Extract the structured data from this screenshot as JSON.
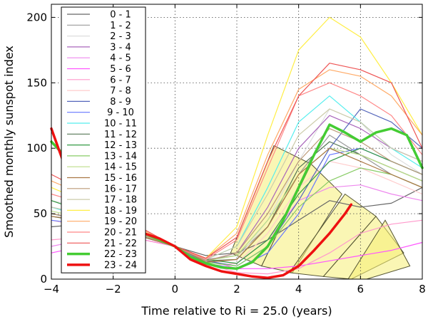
{
  "chart_data": {
    "type": "line",
    "title": "",
    "xlabel": "Time relative to Ri = 25.0 (years)",
    "ylabel": "Smoothed monthly sunspot index",
    "xlim": [
      -4,
      8
    ],
    "ylim": [
      0,
      210
    ],
    "x_ticks": [
      -4,
      -2,
      0,
      2,
      4,
      6,
      8
    ],
    "y_ticks": [
      0,
      50,
      100,
      150,
      200
    ],
    "x_tick_labels": [
      "−4",
      "−2",
      "0",
      "2",
      "4",
      "6",
      "8"
    ],
    "y_tick_labels": [
      "0",
      "50",
      "100",
      "150",
      "200"
    ],
    "grid": true,
    "legend_position": "top-left",
    "series": [
      {
        "name": "0 - 1",
        "color": "#666666",
        "width": 1.2,
        "x": [
          -4,
          -3,
          -2,
          -1,
          0,
          1,
          2,
          3,
          4,
          5,
          6,
          7,
          8
        ],
        "y": [
          40,
          42,
          38,
          32,
          25,
          18,
          20,
          30,
          45,
          60,
          55,
          58,
          70
        ]
      },
      {
        "name": "1 - 2",
        "color": "#999999",
        "width": 1.2,
        "x": [
          -4,
          -3,
          -2,
          -1,
          0,
          1,
          2,
          3,
          4,
          5,
          6,
          7,
          8
        ],
        "y": [
          50,
          45,
          40,
          35,
          25,
          15,
          18,
          40,
          80,
          110,
          95,
          80,
          70
        ]
      },
      {
        "name": "2 - 3",
        "color": "#dddddd",
        "width": 1.2,
        "x": [
          -4,
          -3,
          -2,
          -1,
          0,
          1,
          2,
          3,
          4,
          5,
          6,
          7,
          8
        ],
        "y": [
          60,
          55,
          45,
          35,
          25,
          12,
          15,
          45,
          90,
          130,
          120,
          95,
          80
        ]
      },
      {
        "name": "3 - 4",
        "color": "#aa66bb",
        "width": 1.2,
        "x": [
          -4,
          -3,
          -2,
          -1,
          0,
          1,
          2,
          3,
          4,
          5,
          6,
          7,
          8
        ],
        "y": [
          55,
          50,
          42,
          33,
          25,
          14,
          20,
          55,
          100,
          125,
          115,
          100,
          90
        ]
      },
      {
        "name": "4 - 5",
        "color": "#ee88ee",
        "width": 1.2,
        "x": [
          -4,
          -3,
          -2,
          -1,
          0,
          1,
          2,
          3,
          4,
          5,
          6,
          7,
          8
        ],
        "y": [
          25,
          30,
          30,
          30,
          25,
          10,
          12,
          30,
          60,
          70,
          72,
          65,
          60
        ]
      },
      {
        "name": "5 - 6",
        "color": "#ff55ff",
        "width": 1.2,
        "x": [
          -4,
          -3,
          -2,
          -1,
          0,
          1,
          2,
          3,
          4,
          5,
          6,
          7,
          8
        ],
        "y": [
          20,
          25,
          28,
          30,
          25,
          15,
          8,
          8,
          10,
          14,
          18,
          22,
          28
        ]
      },
      {
        "name": "6 - 7",
        "color": "#ff99cc",
        "width": 1.2,
        "x": [
          -4,
          -3,
          -2,
          -1,
          0,
          1,
          2,
          3,
          4,
          5,
          6,
          7,
          8
        ],
        "y": [
          30,
          32,
          32,
          30,
          25,
          12,
          5,
          4,
          8,
          20,
          35,
          42,
          45
        ]
      },
      {
        "name": "7 - 8",
        "color": "#ffcccc",
        "width": 1.2,
        "x": [
          -4,
          -3,
          -2,
          -1,
          0,
          1,
          2,
          3,
          4,
          5,
          6,
          7,
          8
        ],
        "y": [
          45,
          40,
          36,
          32,
          25,
          10,
          12,
          35,
          70,
          90,
          85,
          75,
          65
        ]
      },
      {
        "name": "8 - 9",
        "color": "#5566bb",
        "width": 1.2,
        "x": [
          -4,
          -3,
          -2,
          -1,
          0,
          1,
          2,
          3,
          4,
          5,
          6,
          7,
          8
        ],
        "y": [
          50,
          45,
          40,
          33,
          25,
          14,
          10,
          25,
          60,
          100,
          130,
          120,
          100
        ]
      },
      {
        "name": "9 - 10",
        "color": "#6677ff",
        "width": 1.2,
        "x": [
          -4,
          -3,
          -2,
          -1,
          0,
          1,
          2,
          3,
          4,
          5,
          6,
          7,
          8
        ],
        "y": [
          45,
          42,
          38,
          32,
          25,
          12,
          8,
          20,
          50,
          95,
          100,
          90,
          80
        ]
      },
      {
        "name": "10 - 11",
        "color": "#55eeee",
        "width": 1.2,
        "x": [
          -4,
          -3,
          -2,
          -1,
          0,
          1,
          2,
          3,
          4,
          5,
          6,
          7,
          8
        ],
        "y": [
          55,
          48,
          40,
          33,
          25,
          15,
          25,
          70,
          120,
          140,
          120,
          100,
          85
        ]
      },
      {
        "name": "11 - 12",
        "color": "#557755",
        "width": 1.2,
        "x": [
          -4,
          -3,
          -2,
          -1,
          0,
          1,
          2,
          3,
          4,
          5,
          6,
          7,
          8
        ],
        "y": [
          48,
          44,
          38,
          32,
          25,
          14,
          15,
          40,
          85,
          105,
          95,
          85,
          75
        ]
      },
      {
        "name": "12 - 13",
        "color": "#339944",
        "width": 1.2,
        "x": [
          -4,
          -3,
          -2,
          -1,
          0,
          1,
          2,
          3,
          4,
          5,
          6,
          7,
          8
        ],
        "y": [
          60,
          52,
          44,
          34,
          25,
          15,
          12,
          30,
          65,
          90,
          100,
          90,
          80
        ]
      },
      {
        "name": "13 - 14",
        "color": "#88cc66",
        "width": 1.2,
        "x": [
          -4,
          -3,
          -2,
          -1,
          0,
          1,
          2,
          3,
          4,
          5,
          6,
          7,
          8
        ],
        "y": [
          50,
          46,
          40,
          33,
          25,
          13,
          10,
          25,
          55,
          75,
          85,
          80,
          70
        ]
      },
      {
        "name": "14 - 15",
        "color": "#bbdd88",
        "width": 1.2,
        "x": [
          -4,
          -3,
          -2,
          -1,
          0,
          1,
          2,
          3,
          4,
          5,
          6,
          7,
          8
        ],
        "y": [
          52,
          47,
          40,
          33,
          25,
          14,
          18,
          45,
          80,
          100,
          95,
          85,
          75
        ]
      },
      {
        "name": "15 - 16",
        "color": "#aa7744",
        "width": 1.2,
        "x": [
          -4,
          -3,
          -2,
          -1,
          0,
          1,
          2,
          3,
          4,
          5,
          6,
          7,
          8
        ],
        "y": [
          48,
          45,
          39,
          32,
          25,
          13,
          15,
          40,
          80,
          100,
          90,
          80,
          70
        ]
      },
      {
        "name": "16 - 17",
        "color": "#bb9977",
        "width": 1.2,
        "x": [
          -4,
          -3,
          -2,
          -1,
          0,
          1,
          2,
          3,
          4,
          5,
          6,
          7,
          8
        ],
        "y": [
          50,
          46,
          40,
          33,
          25,
          14,
          20,
          50,
          90,
          115,
          105,
          90,
          80
        ]
      },
      {
        "name": "17 - 18",
        "color": "#ccccaa",
        "width": 1.2,
        "x": [
          -4,
          -3,
          -2,
          -1,
          0,
          1,
          2,
          3,
          4,
          5,
          6,
          7,
          8
        ],
        "y": [
          55,
          50,
          42,
          34,
          25,
          15,
          25,
          65,
          110,
          130,
          120,
          100,
          90
        ]
      },
      {
        "name": "18 - 19",
        "color": "#ffee44",
        "width": 1.2,
        "x": [
          -4,
          -3,
          -2,
          -1,
          0,
          1,
          2,
          3,
          4,
          5,
          6,
          7,
          8
        ],
        "y": [
          70,
          60,
          48,
          36,
          25,
          16,
          40,
          110,
          175,
          200,
          185,
          150,
          110
        ]
      },
      {
        "name": "19 - 20",
        "color": "#ffaa66",
        "width": 1.2,
        "x": [
          -4,
          -3,
          -2,
          -1,
          0,
          1,
          2,
          3,
          4,
          5,
          6,
          7,
          8
        ],
        "y": [
          75,
          65,
          50,
          37,
          25,
          16,
          35,
          95,
          145,
          160,
          155,
          140,
          110
        ]
      },
      {
        "name": "20 - 21",
        "color": "#ff8888",
        "width": 1.2,
        "x": [
          -4,
          -3,
          -2,
          -1,
          0,
          1,
          2,
          3,
          4,
          5,
          6,
          7,
          8
        ],
        "y": [
          65,
          58,
          47,
          35,
          25,
          15,
          30,
          85,
          140,
          150,
          140,
          125,
          95
        ]
      },
      {
        "name": "21 - 22",
        "color": "#ee5555",
        "width": 1.2,
        "x": [
          -4,
          -3,
          -2,
          -1,
          0,
          1,
          2,
          3,
          4,
          5,
          6,
          7,
          8
        ],
        "y": [
          80,
          68,
          52,
          38,
          25,
          16,
          32,
          90,
          140,
          165,
          160,
          150,
          100
        ]
      },
      {
        "name": "22 - 23",
        "color": "#44cc33",
        "width": 3.5,
        "x": [
          -4,
          -3,
          -2,
          -1,
          0,
          0.5,
          1,
          1.5,
          2,
          2.5,
          3,
          3.5,
          4,
          4.5,
          5,
          5.5,
          6,
          6.5,
          7,
          7.5,
          8
        ],
        "y": [
          105,
          80,
          50,
          35,
          25,
          17,
          12,
          9,
          8,
          13,
          25,
          45,
          70,
          95,
          118,
          112,
          105,
          112,
          115,
          110,
          85
        ]
      },
      {
        "name": "23 - 24",
        "color": "#ee1111",
        "width": 3.5,
        "x": [
          -4,
          -3.5,
          -3,
          -2.5,
          -2,
          -1.5,
          -1,
          -0.5,
          0,
          0.5,
          1,
          1.5,
          2,
          2.5,
          3,
          3.5,
          4,
          4.5,
          5,
          5.5,
          5.7
        ],
        "y": [
          115,
          82,
          62,
          48,
          40,
          37,
          35,
          31,
          25,
          15,
          10,
          6,
          4,
          2,
          1,
          3,
          10,
          22,
          35,
          50,
          57
        ]
      }
    ],
    "shaded_regions": [
      {
        "points": [
          [
            1.8,
            20
          ],
          [
            3.2,
            102
          ],
          [
            4.4,
            88
          ],
          [
            2.8,
            10
          ]
        ]
      },
      {
        "points": [
          [
            2.8,
            10
          ],
          [
            4.4,
            88
          ],
          [
            5.4,
            65
          ],
          [
            3.8,
            5
          ]
        ]
      },
      {
        "points": [
          [
            3.7,
            5
          ],
          [
            5.5,
            65
          ],
          [
            6.5,
            48
          ],
          [
            4.8,
            2
          ]
        ]
      },
      {
        "points": [
          [
            4.8,
            2
          ],
          [
            6.5,
            48
          ],
          [
            7.4,
            20
          ],
          [
            5.7,
            0
          ]
        ]
      },
      {
        "points": [
          [
            5.6,
            0
          ],
          [
            6.8,
            45
          ],
          [
            7.6,
            10
          ],
          [
            6.2,
            0
          ]
        ]
      }
    ]
  }
}
